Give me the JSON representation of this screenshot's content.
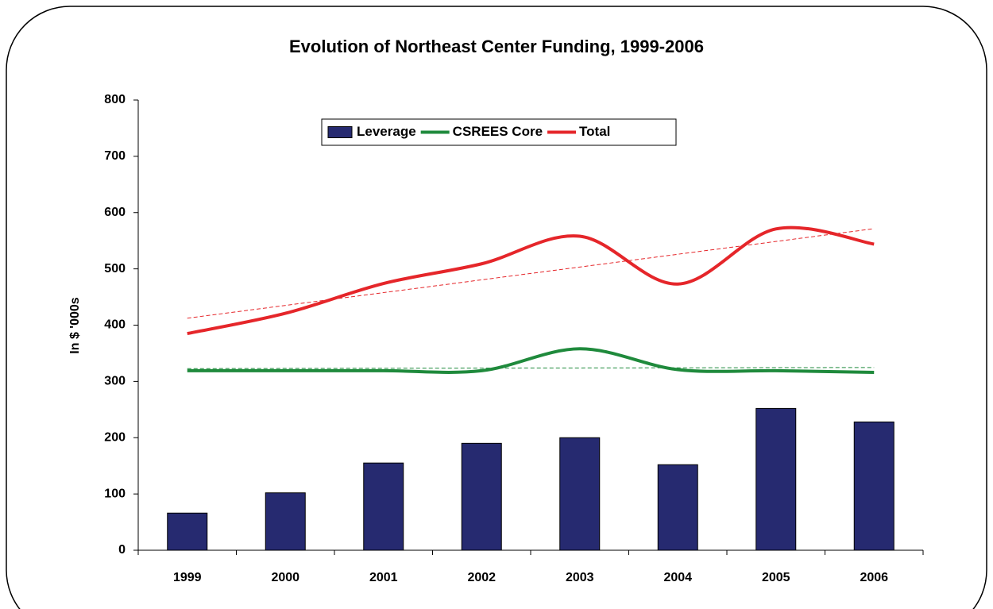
{
  "chart_data": {
    "type": "bar",
    "title": "Evolution of Northeast Center Funding, 1999-2006",
    "y_label": "In $ '000s",
    "categories": [
      "1999",
      "2000",
      "2001",
      "2002",
      "2003",
      "2004",
      "2005",
      "2006"
    ],
    "series": [
      {
        "name": "Leverage",
        "type": "bar",
        "color": "#262a70",
        "values": [
          66,
          102,
          155,
          190,
          200,
          152,
          252,
          228
        ]
      },
      {
        "name": "CSREES Core",
        "type": "line",
        "color": "#1f8a3c",
        "trendline": true,
        "values": [
          319,
          319,
          319,
          319,
          358,
          321,
          319,
          316
        ]
      },
      {
        "name": "Total",
        "type": "line",
        "color": "#e5262a",
        "trendline": true,
        "values": [
          385,
          421,
          474,
          509,
          558,
          473,
          571,
          544
        ]
      }
    ],
    "ylim": [
      0,
      800
    ],
    "yticks": [
      0,
      100,
      200,
      300,
      400,
      500,
      600,
      700,
      800
    ],
    "legend": "top"
  }
}
